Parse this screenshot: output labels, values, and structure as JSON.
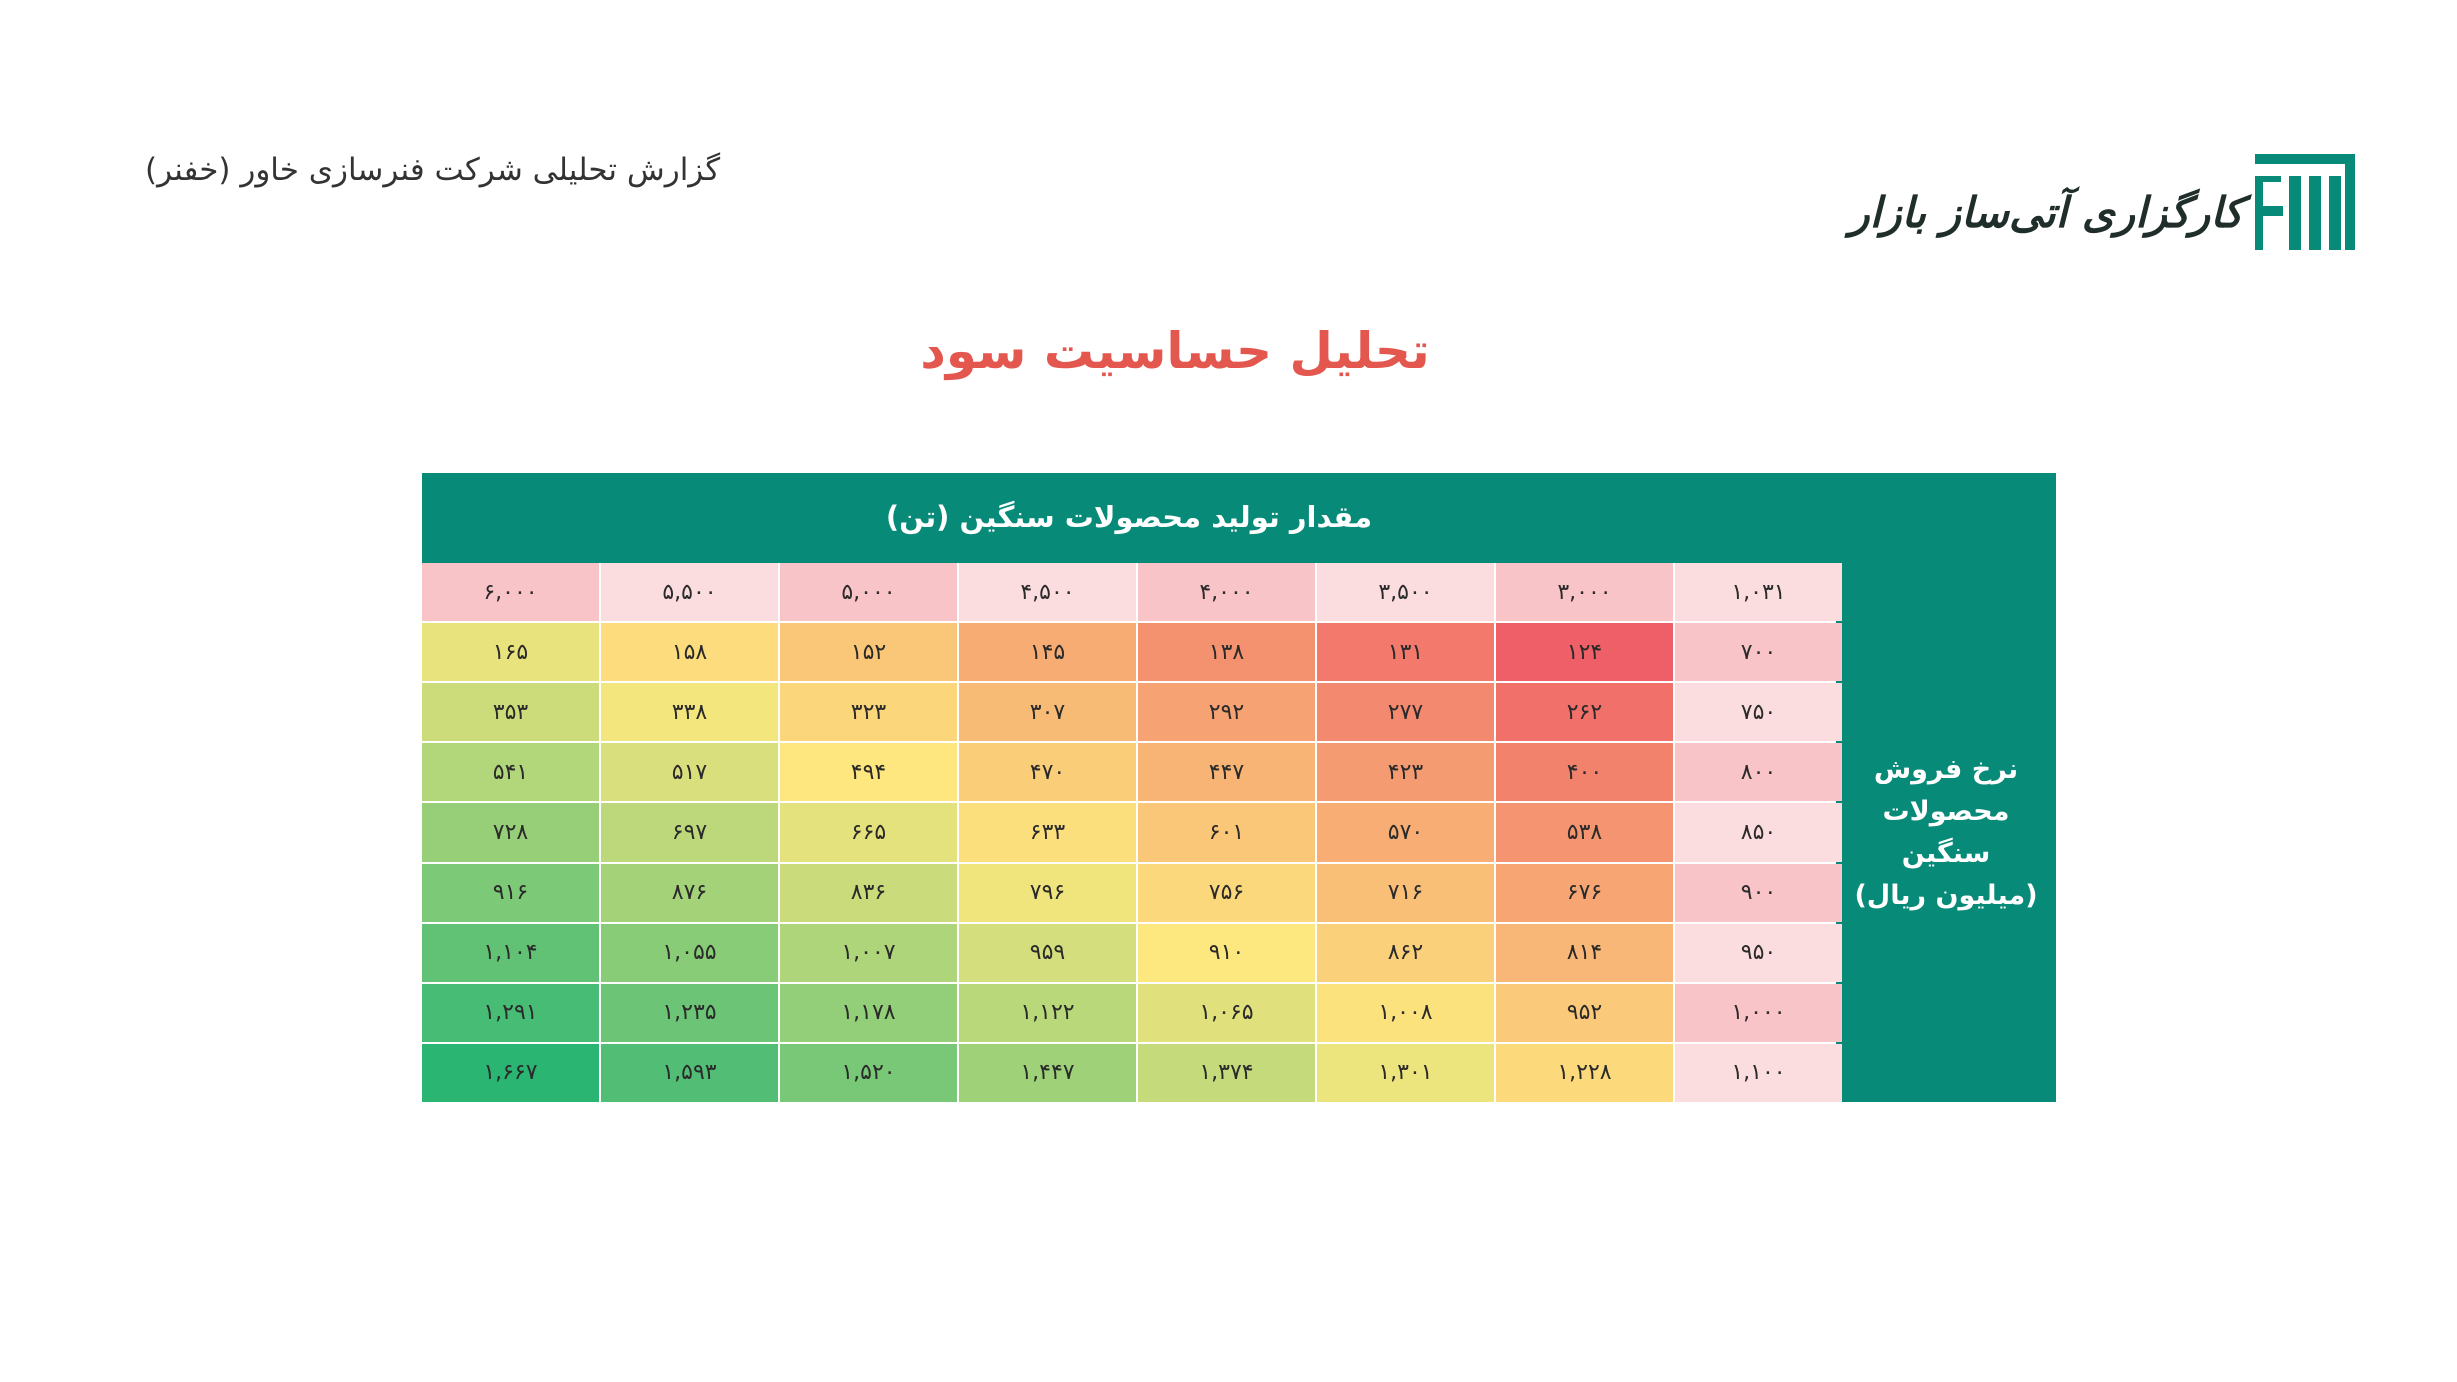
{
  "document_title": "گزارش تحلیلی شرکت فنرسازی خاور (خفنر)",
  "logo_text": "کارگزاری آتی‌ساز بازار",
  "main_title": "تحلیل حساسیت سود",
  "table": {
    "column_axis_label": "مقدار تولید محصولات سنگین (تن)",
    "row_axis_label_lines": [
      "نرخ فروش",
      "محصولات سنگین",
      "(میلیون ریال)"
    ],
    "corner_value": "۱,۰۳۱",
    "column_headers": [
      "۶,۰۰۰",
      "۵,۵۰۰",
      "۵,۰۰۰",
      "۴,۵۰۰",
      "۴,۰۰۰",
      "۳,۵۰۰",
      "۳,۰۰۰"
    ],
    "rows": [
      {
        "rate": "۷۰۰",
        "values": [
          "۱۶۵",
          "۱۵۸",
          "۱۵۲",
          "۱۴۵",
          "۱۳۸",
          "۱۳۱",
          "۱۲۴"
        ]
      },
      {
        "rate": "۷۵۰",
        "values": [
          "۳۵۳",
          "۳۳۸",
          "۳۲۳",
          "۳۰۷",
          "۲۹۲",
          "۲۷۷",
          "۲۶۲"
        ]
      },
      {
        "rate": "۸۰۰",
        "values": [
          "۵۴۱",
          "۵۱۷",
          "۴۹۴",
          "۴۷۰",
          "۴۴۷",
          "۴۲۳",
          "۴۰۰"
        ]
      },
      {
        "rate": "۸۵۰",
        "values": [
          "۷۲۸",
          "۶۹۷",
          "۶۶۵",
          "۶۳۳",
          "۶۰۱",
          "۵۷۰",
          "۵۳۸"
        ]
      },
      {
        "rate": "۹۰۰",
        "values": [
          "۹۱۶",
          "۸۷۶",
          "۸۳۶",
          "۷۹۶",
          "۷۵۶",
          "۷۱۶",
          "۶۷۶"
        ]
      },
      {
        "rate": "۹۵۰",
        "values": [
          "۱,۱۰۴",
          "۱,۰۵۵",
          "۱,۰۰۷",
          "۹۵۹",
          "۹۱۰",
          "۸۶۲",
          "۸۱۴"
        ]
      },
      {
        "rate": "۱,۰۰۰",
        "values": [
          "۱,۲۹۱",
          "۱,۲۳۵",
          "۱,۱۷۸",
          "۱,۱۲۲",
          "۱,۰۶۵",
          "۱,۰۰۸",
          "۹۵۲"
        ]
      },
      {
        "rate": "۱,۱۰۰",
        "values": [
          "۱,۶۶۷",
          "۱,۵۹۳",
          "۱,۵۲۰",
          "۱,۴۴۷",
          "۱,۳۷۴",
          "۱,۳۰۱",
          "۱,۲۲۸"
        ]
      }
    ]
  },
  "colors": {
    "accent_teal": "#078a78",
    "title_red": "#e3574f",
    "header_pink_a": "#f8c4c7",
    "header_pink_b": "#fbdde0",
    "heat_low": "#ef5f67",
    "heat_mid": "#fde87e",
    "heat_high": "#2bb573"
  }
}
